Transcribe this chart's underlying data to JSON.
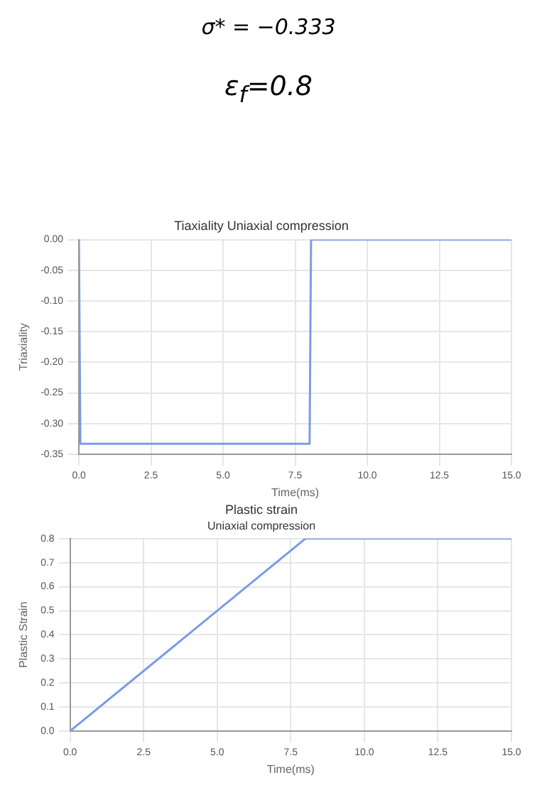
{
  "chart_data": [
    {
      "type": "line",
      "title": "Tiaxiality Uniaxial compression",
      "xlabel": "Time(ms)",
      "ylabel": "Triaxiality",
      "annotations": [
        "σ* = −0.333",
        "ε$_{f}$=0.8"
      ],
      "series": [
        {
          "color": "#7b9be6",
          "x": [
            0,
            0.05,
            8,
            8.05,
            15
          ],
          "values": [
            0,
            -0.333,
            -0.333,
            0,
            0
          ]
        }
      ],
      "xlim": [
        0,
        15
      ],
      "xticks": [
        {
          "value": 0,
          "label": "0.0"
        },
        2.5,
        {
          "value": 5,
          "label": "5.0"
        },
        7.5,
        {
          "value": 10,
          "label": "10.0"
        },
        12.5,
        {
          "value": 15,
          "label": "15.0"
        }
      ],
      "ylim": [
        -0.35,
        0
      ],
      "yticks": [
        {
          "value": -0.35,
          "label": "-0.35"
        },
        {
          "value": -0.3,
          "label": "-0.30"
        },
        -0.25,
        {
          "value": -0.2,
          "label": "-0.20"
        },
        -0.15,
        {
          "value": -0.1,
          "label": "-0.10"
        },
        -0.05,
        {
          "value": 0,
          "label": "0.00"
        }
      ],
      "grid": true,
      "legend": false,
      "marker": "none",
      "line_style": "solid"
    },
    {
      "type": "line",
      "title": "Plastic strain",
      "subtitle": "Uniaxial compression",
      "xlabel": "Time(ms)",
      "ylabel": "Plastic Strain",
      "series": [
        {
          "color": "#7b9be6",
          "x": [
            0,
            8,
            15
          ],
          "values": [
            0,
            0.8,
            0.8
          ]
        }
      ],
      "xlim": [
        0,
        15
      ],
      "xticks": [
        {
          "value": 0,
          "label": "0.0"
        },
        2.5,
        {
          "value": 5,
          "label": "5.0"
        },
        7.5,
        {
          "value": 10,
          "label": "10.0"
        },
        12.5,
        {
          "value": 15,
          "label": "15.0"
        }
      ],
      "ylim": [
        0,
        0.8
      ],
      "yticks": [
        {
          "value": 0,
          "label": "0.0"
        },
        0.1,
        0.2,
        0.3,
        0.4,
        0.5,
        0.6,
        0.7,
        0.8
      ],
      "grid": true,
      "legend": false,
      "marker": "none",
      "line_style": "solid"
    }
  ]
}
